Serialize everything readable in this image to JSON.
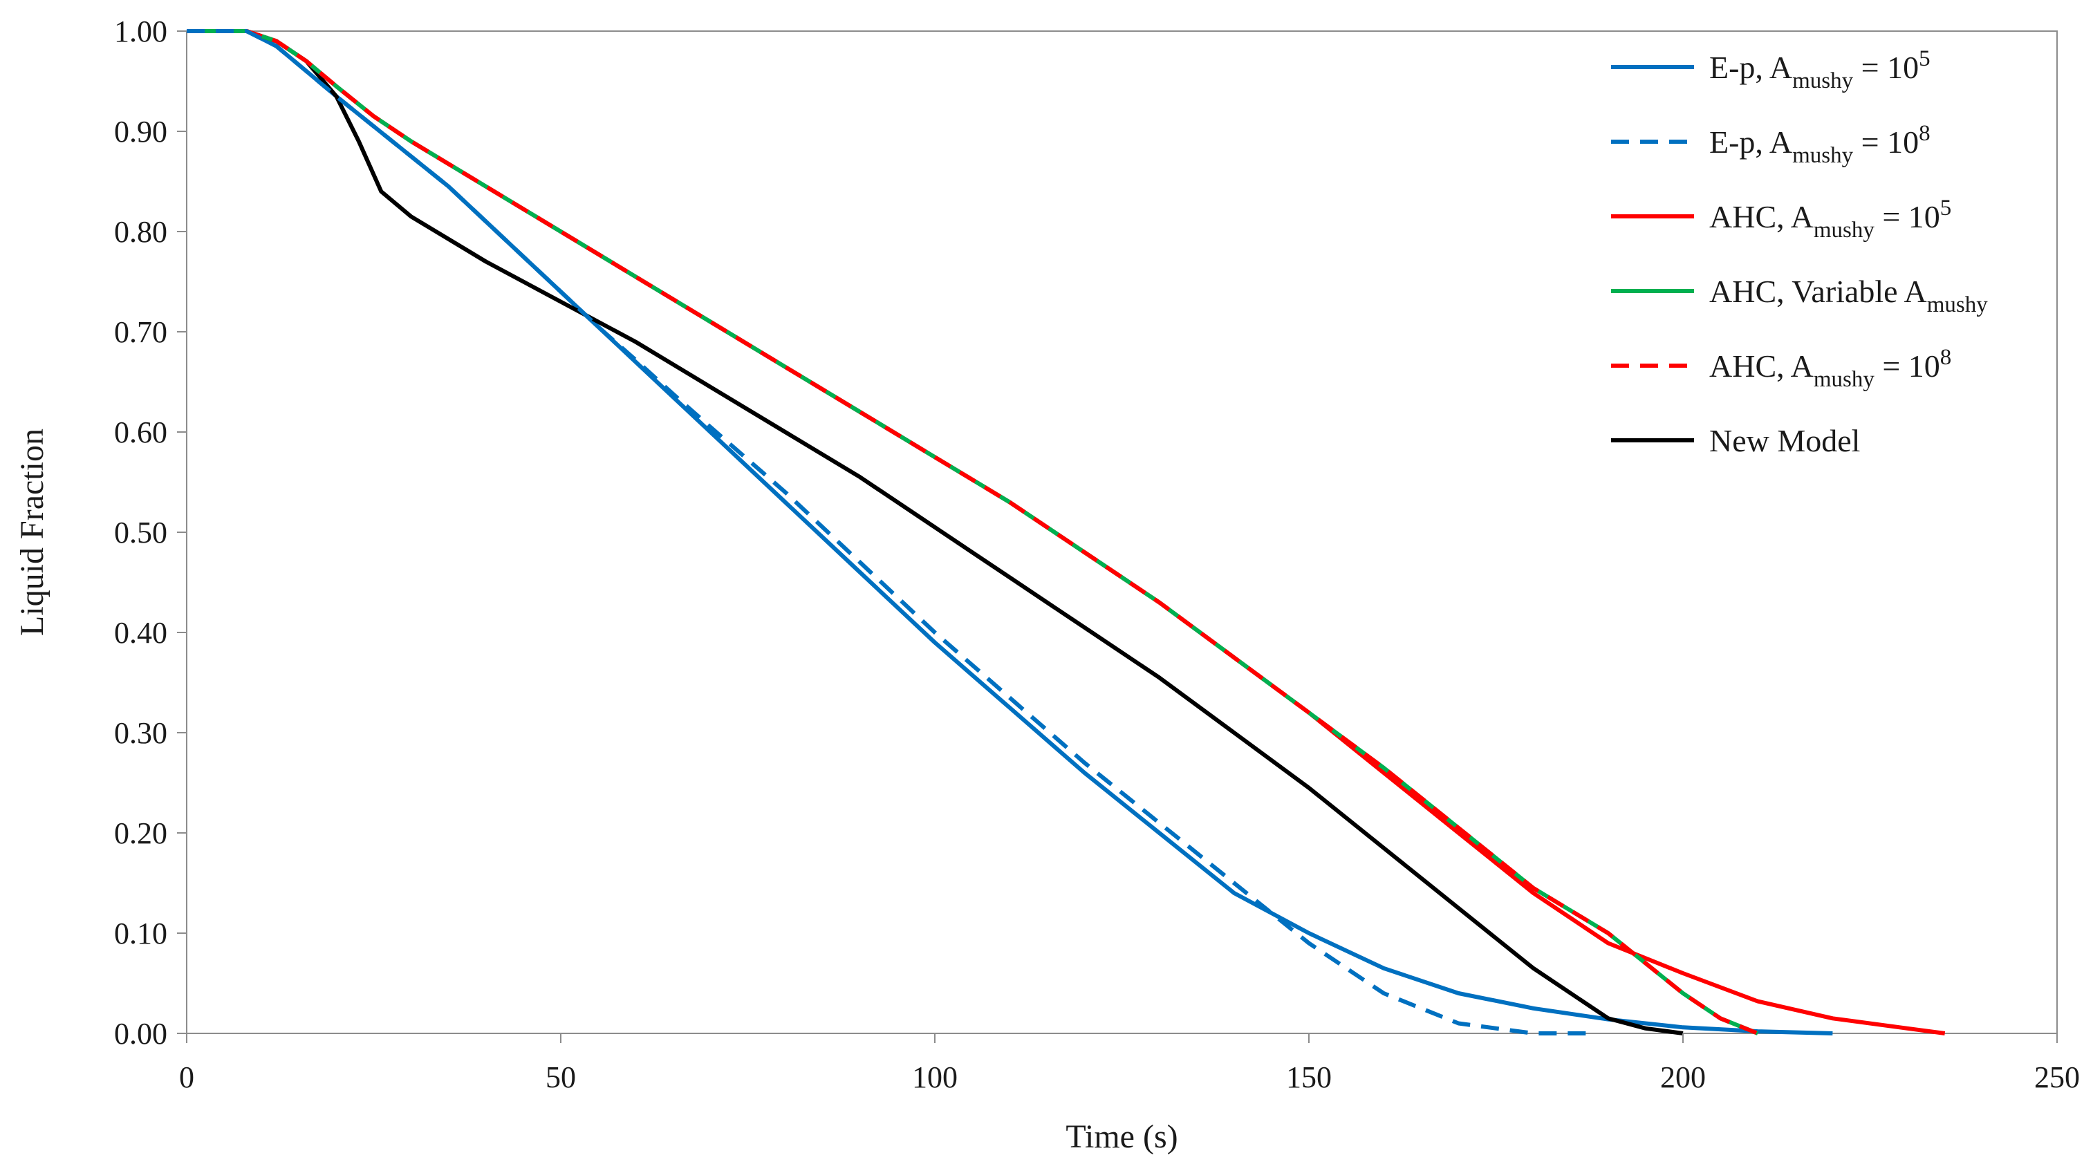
{
  "chart_data": {
    "type": "line",
    "title": "",
    "xlabel": "Time (s)",
    "ylabel": "Liquid Fraction",
    "xlim": [
      0,
      250
    ],
    "ylim": [
      0,
      1
    ],
    "x_ticks": [
      0,
      50,
      100,
      150,
      200,
      250
    ],
    "y_ticks": [
      0,
      0.1,
      0.2,
      0.3,
      0.4,
      0.5,
      0.6,
      0.7,
      0.8,
      0.9,
      1.0
    ],
    "x_tick_labels": [
      "0",
      "50",
      "100",
      "150",
      "200",
      "250"
    ],
    "y_tick_labels": [
      "0.00",
      "0.10",
      "0.20",
      "0.30",
      "0.40",
      "0.50",
      "0.60",
      "0.70",
      "0.80",
      "0.90",
      "1.00"
    ],
    "grid": false,
    "legend_position": "top-right",
    "series": [
      {
        "name": "E-p, A_mushy = 10^5",
        "legend": {
          "prefix": "E-p, A",
          "sub": "mushy",
          "mid": " = 10",
          "sup": "5"
        },
        "color": "#0070C0",
        "dash": "solid",
        "points": [
          [
            0,
            1.0
          ],
          [
            8,
            1.0
          ],
          [
            12,
            0.985
          ],
          [
            16,
            0.96
          ],
          [
            20,
            0.935
          ],
          [
            25,
            0.905
          ],
          [
            30,
            0.875
          ],
          [
            35,
            0.845
          ],
          [
            40,
            0.81
          ],
          [
            45,
            0.775
          ],
          [
            50,
            0.74
          ],
          [
            55,
            0.705
          ],
          [
            60,
            0.67
          ],
          [
            65,
            0.635
          ],
          [
            70,
            0.6
          ],
          [
            80,
            0.53
          ],
          [
            90,
            0.46
          ],
          [
            100,
            0.39
          ],
          [
            110,
            0.325
          ],
          [
            120,
            0.26
          ],
          [
            130,
            0.2
          ],
          [
            140,
            0.14
          ],
          [
            150,
            0.1
          ],
          [
            160,
            0.065
          ],
          [
            170,
            0.04
          ],
          [
            180,
            0.025
          ],
          [
            190,
            0.014
          ],
          [
            200,
            0.006
          ],
          [
            210,
            0.002
          ],
          [
            220,
            0.0
          ]
        ]
      },
      {
        "name": "E-p, A_mushy = 10^8",
        "legend": {
          "prefix": "E-p, A",
          "sub": "mushy",
          "mid": " = 10",
          "sup": "8"
        },
        "color": "#0070C0",
        "dash": "dashed",
        "points": [
          [
            0,
            1.0
          ],
          [
            8,
            1.0
          ],
          [
            12,
            0.985
          ],
          [
            16,
            0.96
          ],
          [
            20,
            0.935
          ],
          [
            25,
            0.905
          ],
          [
            30,
            0.875
          ],
          [
            35,
            0.845
          ],
          [
            40,
            0.81
          ],
          [
            45,
            0.775
          ],
          [
            50,
            0.74
          ],
          [
            55,
            0.705
          ],
          [
            60,
            0.672
          ],
          [
            65,
            0.638
          ],
          [
            70,
            0.605
          ],
          [
            80,
            0.54
          ],
          [
            90,
            0.47
          ],
          [
            100,
            0.4
          ],
          [
            110,
            0.335
          ],
          [
            120,
            0.27
          ],
          [
            130,
            0.21
          ],
          [
            140,
            0.15
          ],
          [
            150,
            0.09
          ],
          [
            160,
            0.04
          ],
          [
            170,
            0.01
          ],
          [
            180,
            0.0
          ],
          [
            188,
            0.0
          ]
        ]
      },
      {
        "name": "AHC, A_mushy = 10^5",
        "legend": {
          "prefix": "AHC, A",
          "sub": "mushy",
          "mid": " = 10",
          "sup": "5"
        },
        "color": "#FF0000",
        "dash": "solid",
        "points": [
          [
            0,
            1.0
          ],
          [
            8,
            1.0
          ],
          [
            12,
            0.99
          ],
          [
            16,
            0.97
          ],
          [
            20,
            0.945
          ],
          [
            25,
            0.915
          ],
          [
            30,
            0.89
          ],
          [
            40,
            0.845
          ],
          [
            50,
            0.8
          ],
          [
            60,
            0.755
          ],
          [
            70,
            0.71
          ],
          [
            80,
            0.665
          ],
          [
            90,
            0.62
          ],
          [
            100,
            0.575
          ],
          [
            110,
            0.53
          ],
          [
            120,
            0.48
          ],
          [
            130,
            0.43
          ],
          [
            140,
            0.375
          ],
          [
            150,
            0.32
          ],
          [
            160,
            0.26
          ],
          [
            170,
            0.2
          ],
          [
            180,
            0.14
          ],
          [
            190,
            0.09
          ],
          [
            200,
            0.06
          ],
          [
            210,
            0.032
          ],
          [
            220,
            0.015
          ],
          [
            230,
            0.005
          ],
          [
            235,
            0.0
          ]
        ]
      },
      {
        "name": "AHC, Variable A_mushy",
        "legend": {
          "prefix": "AHC, Variable A",
          "sub": "mushy",
          "mid": "",
          "sup": ""
        },
        "color": "#00B050",
        "dash": "solid",
        "points": [
          [
            0,
            1.0
          ],
          [
            8,
            1.0
          ],
          [
            12,
            0.99
          ],
          [
            16,
            0.97
          ],
          [
            20,
            0.945
          ],
          [
            25,
            0.915
          ],
          [
            30,
            0.89
          ],
          [
            40,
            0.845
          ],
          [
            50,
            0.8
          ],
          [
            60,
            0.755
          ],
          [
            70,
            0.71
          ],
          [
            80,
            0.665
          ],
          [
            90,
            0.62
          ],
          [
            100,
            0.575
          ],
          [
            110,
            0.53
          ],
          [
            120,
            0.48
          ],
          [
            130,
            0.43
          ],
          [
            140,
            0.375
          ],
          [
            150,
            0.32
          ],
          [
            160,
            0.265
          ],
          [
            170,
            0.205
          ],
          [
            180,
            0.145
          ],
          [
            190,
            0.1
          ],
          [
            195,
            0.07
          ],
          [
            200,
            0.04
          ],
          [
            205,
            0.015
          ],
          [
            210,
            0.0
          ]
        ]
      },
      {
        "name": "AHC, A_mushy = 10^8",
        "legend": {
          "prefix": "AHC, A",
          "sub": "mushy",
          "mid": " = 10",
          "sup": "8"
        },
        "color": "#FF0000",
        "dash": "dashed",
        "points": [
          [
            0,
            1.0
          ],
          [
            8,
            1.0
          ],
          [
            12,
            0.99
          ],
          [
            16,
            0.97
          ],
          [
            20,
            0.945
          ],
          [
            25,
            0.915
          ],
          [
            30,
            0.89
          ],
          [
            40,
            0.845
          ],
          [
            50,
            0.8
          ],
          [
            60,
            0.755
          ],
          [
            70,
            0.71
          ],
          [
            80,
            0.665
          ],
          [
            90,
            0.62
          ],
          [
            100,
            0.575
          ],
          [
            110,
            0.53
          ],
          [
            120,
            0.48
          ],
          [
            130,
            0.43
          ],
          [
            140,
            0.375
          ],
          [
            150,
            0.32
          ],
          [
            160,
            0.265
          ],
          [
            170,
            0.205
          ],
          [
            180,
            0.145
          ],
          [
            190,
            0.1
          ],
          [
            195,
            0.07
          ],
          [
            200,
            0.04
          ],
          [
            205,
            0.015
          ],
          [
            210,
            0.0
          ]
        ]
      },
      {
        "name": "New Model",
        "legend": {
          "prefix": "New Model",
          "sub": "",
          "mid": "",
          "sup": ""
        },
        "color": "#000000",
        "dash": "solid",
        "points": [
          [
            0,
            1.0
          ],
          [
            8,
            1.0
          ],
          [
            12,
            0.99
          ],
          [
            16,
            0.97
          ],
          [
            20,
            0.935
          ],
          [
            23,
            0.89
          ],
          [
            26,
            0.84
          ],
          [
            30,
            0.815
          ],
          [
            40,
            0.77
          ],
          [
            50,
            0.73
          ],
          [
            60,
            0.69
          ],
          [
            70,
            0.645
          ],
          [
            80,
            0.6
          ],
          [
            90,
            0.555
          ],
          [
            100,
            0.505
          ],
          [
            110,
            0.455
          ],
          [
            120,
            0.405
          ],
          [
            130,
            0.355
          ],
          [
            140,
            0.3
          ],
          [
            150,
            0.245
          ],
          [
            160,
            0.185
          ],
          [
            170,
            0.125
          ],
          [
            180,
            0.065
          ],
          [
            190,
            0.015
          ],
          [
            195,
            0.005
          ],
          [
            200,
            0.0
          ]
        ]
      }
    ]
  }
}
